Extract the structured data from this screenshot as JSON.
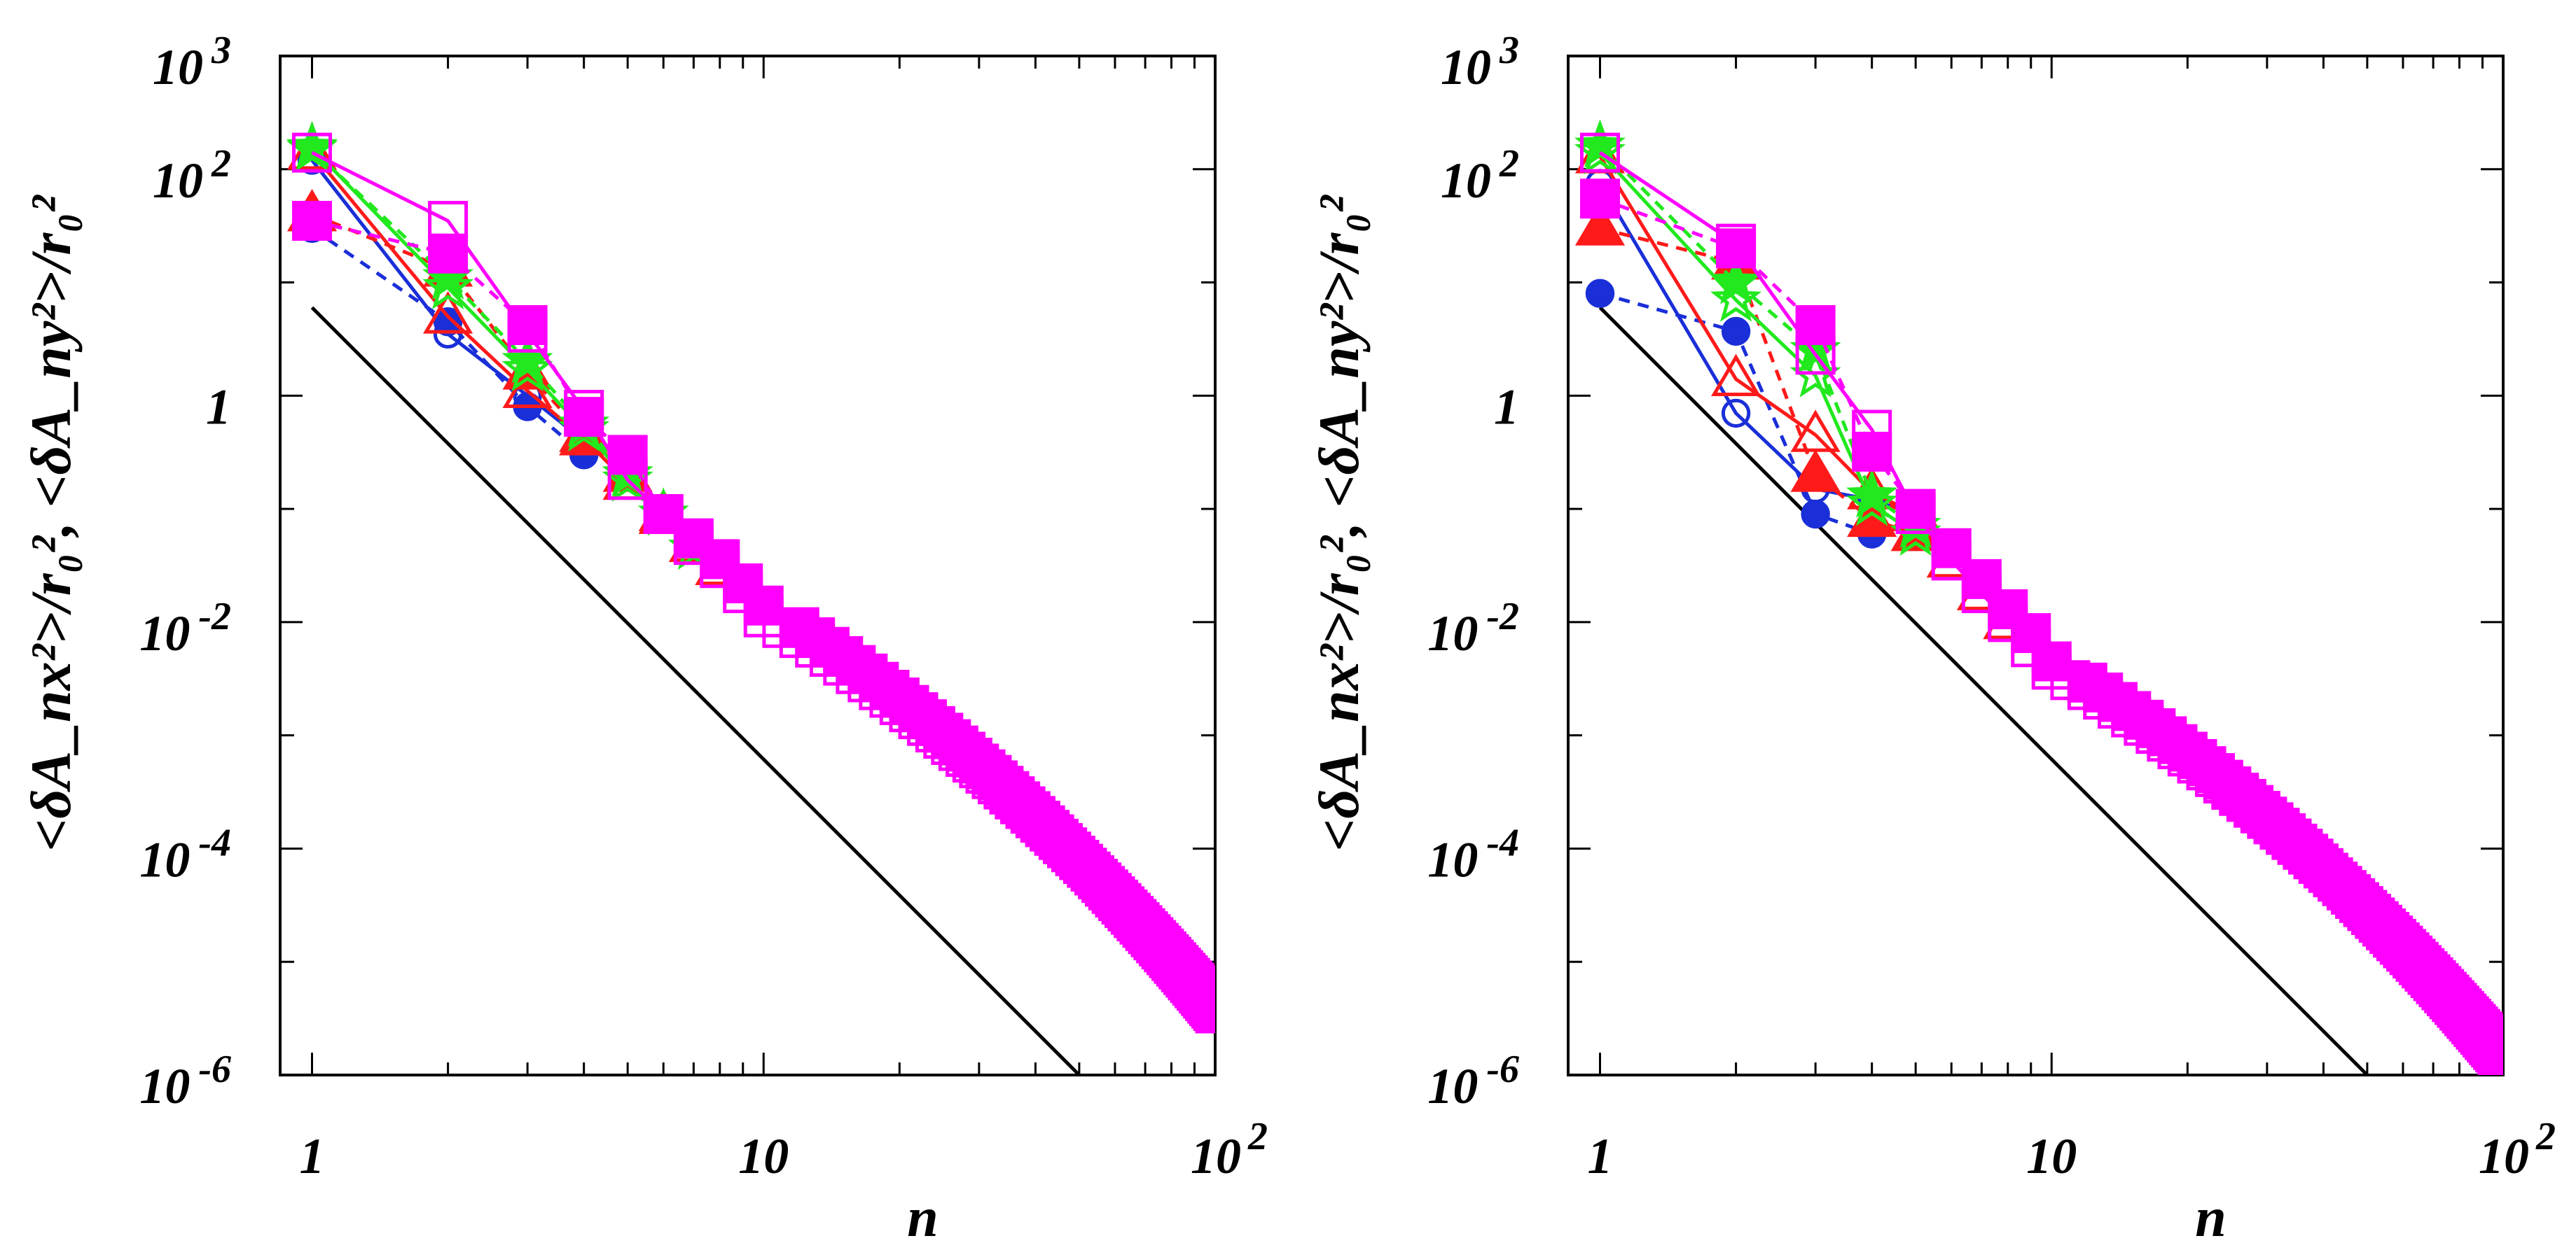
{
  "chart_data": [
    {
      "type": "scatter",
      "panel": "left",
      "title": "",
      "xlabel": "n",
      "ylabel": "<δA_nx²>/r₀², <δA_ny²>/r₀²",
      "xscale": "log",
      "yscale": "log",
      "xlim": [
        0.85,
        100
      ],
      "ylim": [
        1e-06,
        1000
      ],
      "x_ticks": [
        {
          "value": 1,
          "base": "1",
          "exp": ""
        },
        {
          "value": 10,
          "base": "10",
          "exp": ""
        },
        {
          "value": 100,
          "base": "10",
          "exp": "2"
        }
      ],
      "y_ticks": [
        {
          "value": 1000,
          "base": "10",
          "exp": "3"
        },
        {
          "value": 100,
          "base": "10",
          "exp": "2"
        },
        {
          "value": 1,
          "base": "1",
          "exp": ""
        },
        {
          "value": 0.01,
          "base": "10",
          "exp": "-2"
        },
        {
          "value": 0.0001,
          "base": "10",
          "exp": "-4"
        },
        {
          "value": 1e-06,
          "base": "10",
          "exp": "-6"
        }
      ],
      "reference_line": {
        "slope": -4,
        "points": [
          [
            1,
            6
          ],
          [
            50,
            1e-06
          ]
        ],
        "color": "#000000"
      },
      "series": [
        {
          "name": "blue open circles (solid)",
          "color": "#1a2fd8",
          "marker": "circle",
          "filled": false,
          "dashed": false,
          "x": [
            1,
            2,
            3,
            4
          ],
          "y": [
            120,
            3.5,
            1.0,
            0.4
          ]
        },
        {
          "name": "blue filled circles (dashed)",
          "color": "#1a2fd8",
          "marker": "circle",
          "filled": true,
          "dashed": true,
          "x": [
            1,
            2,
            3,
            4
          ],
          "y": [
            30,
            4.5,
            0.8,
            0.3
          ]
        },
        {
          "name": "red open triangles (solid)",
          "color": "#ff1a1a",
          "marker": "triangle",
          "filled": false,
          "dashed": false,
          "x": [
            1,
            2,
            3,
            4,
            5,
            6,
            7,
            8
          ],
          "y": [
            140,
            5.0,
            1.1,
            0.42,
            0.17,
            0.085,
            0.048,
            0.03
          ]
        },
        {
          "name": "red filled triangles (dashed)",
          "color": "#ff1a1a",
          "marker": "triangle",
          "filled": true,
          "dashed": true,
          "x": [
            1,
            2,
            3,
            4,
            5,
            6
          ],
          "y": [
            40,
            13,
            1.6,
            0.45,
            0.2,
            0.09
          ]
        },
        {
          "name": "green open stars (solid)",
          "color": "#22e81e",
          "marker": "star",
          "filled": false,
          "dashed": false,
          "x": [
            1,
            2,
            3,
            4,
            5,
            6,
            7
          ],
          "y": [
            155,
            9,
            1.7,
            0.5,
            0.18,
            0.09,
            0.045
          ]
        },
        {
          "name": "green filled stars (dashed)",
          "color": "#22e81e",
          "marker": "star",
          "filled": true,
          "dashed": true,
          "x": [
            1,
            2,
            3,
            4,
            5
          ],
          "y": [
            150,
            11,
            2.0,
            0.55,
            0.2
          ]
        },
        {
          "name": "magenta open squares (solid)",
          "color": "#ff00ff",
          "marker": "square",
          "filled": false,
          "dashed": false,
          "x": [
            1,
            2,
            3,
            4,
            5,
            6,
            7,
            8,
            9,
            10
          ],
          "y": [
            140,
            35,
            3.6,
            0.75,
            0.18,
            0.09,
            0.048,
            0.03,
            0.018,
            0.011
          ],
          "tail": {
            "from": 10,
            "to": 100,
            "decay": "n^-4 flattening",
            "end_value": 4e-06
          }
        },
        {
          "name": "magenta filled squares (dashed)",
          "color": "#ff00ff",
          "marker": "square",
          "filled": true,
          "dashed": true,
          "x": [
            1,
            2,
            3,
            4,
            5,
            6,
            7,
            8,
            9,
            10
          ],
          "y": [
            35,
            18,
            4.2,
            0.65,
            0.3,
            0.09,
            0.055,
            0.036,
            0.022,
            0.014
          ],
          "tail": {
            "from": 11,
            "to": 100,
            "end_value": 3.5e-06
          }
        }
      ]
    },
    {
      "type": "scatter",
      "panel": "right",
      "title": "",
      "xlabel": "n",
      "ylabel": "<δA_nx²>/r₀², <δA_ny²>/r₀²",
      "xscale": "log",
      "yscale": "log",
      "xlim": [
        0.85,
        100
      ],
      "ylim": [
        1e-06,
        1000
      ],
      "x_ticks": [
        {
          "value": 1,
          "base": "1",
          "exp": ""
        },
        {
          "value": 10,
          "base": "10",
          "exp": ""
        },
        {
          "value": 100,
          "base": "10",
          "exp": "2"
        }
      ],
      "y_ticks": [
        {
          "value": 1000,
          "base": "10",
          "exp": "3"
        },
        {
          "value": 100,
          "base": "10",
          "exp": "2"
        },
        {
          "value": 1,
          "base": "1",
          "exp": ""
        },
        {
          "value": 0.01,
          "base": "10",
          "exp": "-2"
        },
        {
          "value": 0.0001,
          "base": "10",
          "exp": "-4"
        },
        {
          "value": 1e-06,
          "base": "10",
          "exp": "-6"
        }
      ],
      "reference_line": {
        "slope": -4,
        "points": [
          [
            1,
            6
          ],
          [
            50,
            1e-06
          ]
        ],
        "color": "#000000"
      },
      "series": [
        {
          "name": "blue open circles (solid)",
          "color": "#1a2fd8",
          "marker": "circle",
          "filled": false,
          "dashed": false,
          "x": [
            1,
            2,
            3,
            4,
            5
          ],
          "y": [
            75,
            0.7,
            0.15,
            0.12,
            0.09
          ]
        },
        {
          "name": "blue filled circles (dashed)",
          "color": "#1a2fd8",
          "marker": "circle",
          "filled": true,
          "dashed": true,
          "x": [
            1,
            2,
            3,
            4,
            5
          ],
          "y": [
            8,
            3.7,
            0.09,
            0.06,
            0.06
          ]
        },
        {
          "name": "red open triangles (solid)",
          "color": "#ff1a1a",
          "marker": "triangle",
          "filled": false,
          "dashed": false,
          "x": [
            1,
            2,
            3,
            4,
            5,
            6,
            7,
            8
          ],
          "y": [
            130,
            1.4,
            0.45,
            0.14,
            0.09,
            0.035,
            0.018,
            0.01
          ]
        },
        {
          "name": "red filled triangles (dashed)",
          "color": "#ff1a1a",
          "marker": "triangle",
          "filled": true,
          "dashed": true,
          "x": [
            1,
            2,
            3,
            4,
            5
          ],
          "y": [
            30,
            15,
            0.2,
            0.08,
            0.06
          ]
        },
        {
          "name": "green open stars (solid)",
          "color": "#22e81e",
          "marker": "star",
          "filled": false,
          "dashed": false,
          "x": [
            1,
            2,
            3,
            4,
            5
          ],
          "y": [
            140,
            7,
            1.5,
            0.11,
            0.06
          ]
        },
        {
          "name": "green filled stars (dashed)",
          "color": "#22e81e",
          "marker": "star",
          "filled": true,
          "dashed": true,
          "x": [
            1,
            2,
            3,
            4,
            5
          ],
          "y": [
            160,
            10,
            2.5,
            0.13,
            0.07
          ]
        },
        {
          "name": "magenta open squares (solid)",
          "color": "#ff00ff",
          "marker": "square",
          "filled": false,
          "dashed": false,
          "x": [
            1,
            2,
            3,
            4,
            5,
            6,
            7,
            8,
            9,
            10
          ],
          "y": [
            140,
            22,
            2.3,
            0.5,
            0.09,
            0.035,
            0.018,
            0.01,
            0.006,
            0.0038
          ],
          "tail": {
            "from": 10,
            "to": 100,
            "end_value": 1.5e-06
          }
        },
        {
          "name": "magenta filled squares (dashed)",
          "color": "#ff00ff",
          "marker": "square",
          "filled": true,
          "dashed": true,
          "x": [
            1,
            2,
            3,
            4,
            5,
            6,
            7,
            8,
            9,
            10
          ],
          "y": [
            55,
            20,
            4.2,
            0.32,
            0.1,
            0.045,
            0.024,
            0.013,
            0.008,
            0.0045
          ],
          "tail": {
            "from": 11,
            "to": 100,
            "end_value": 1.3e-06
          }
        }
      ]
    }
  ]
}
